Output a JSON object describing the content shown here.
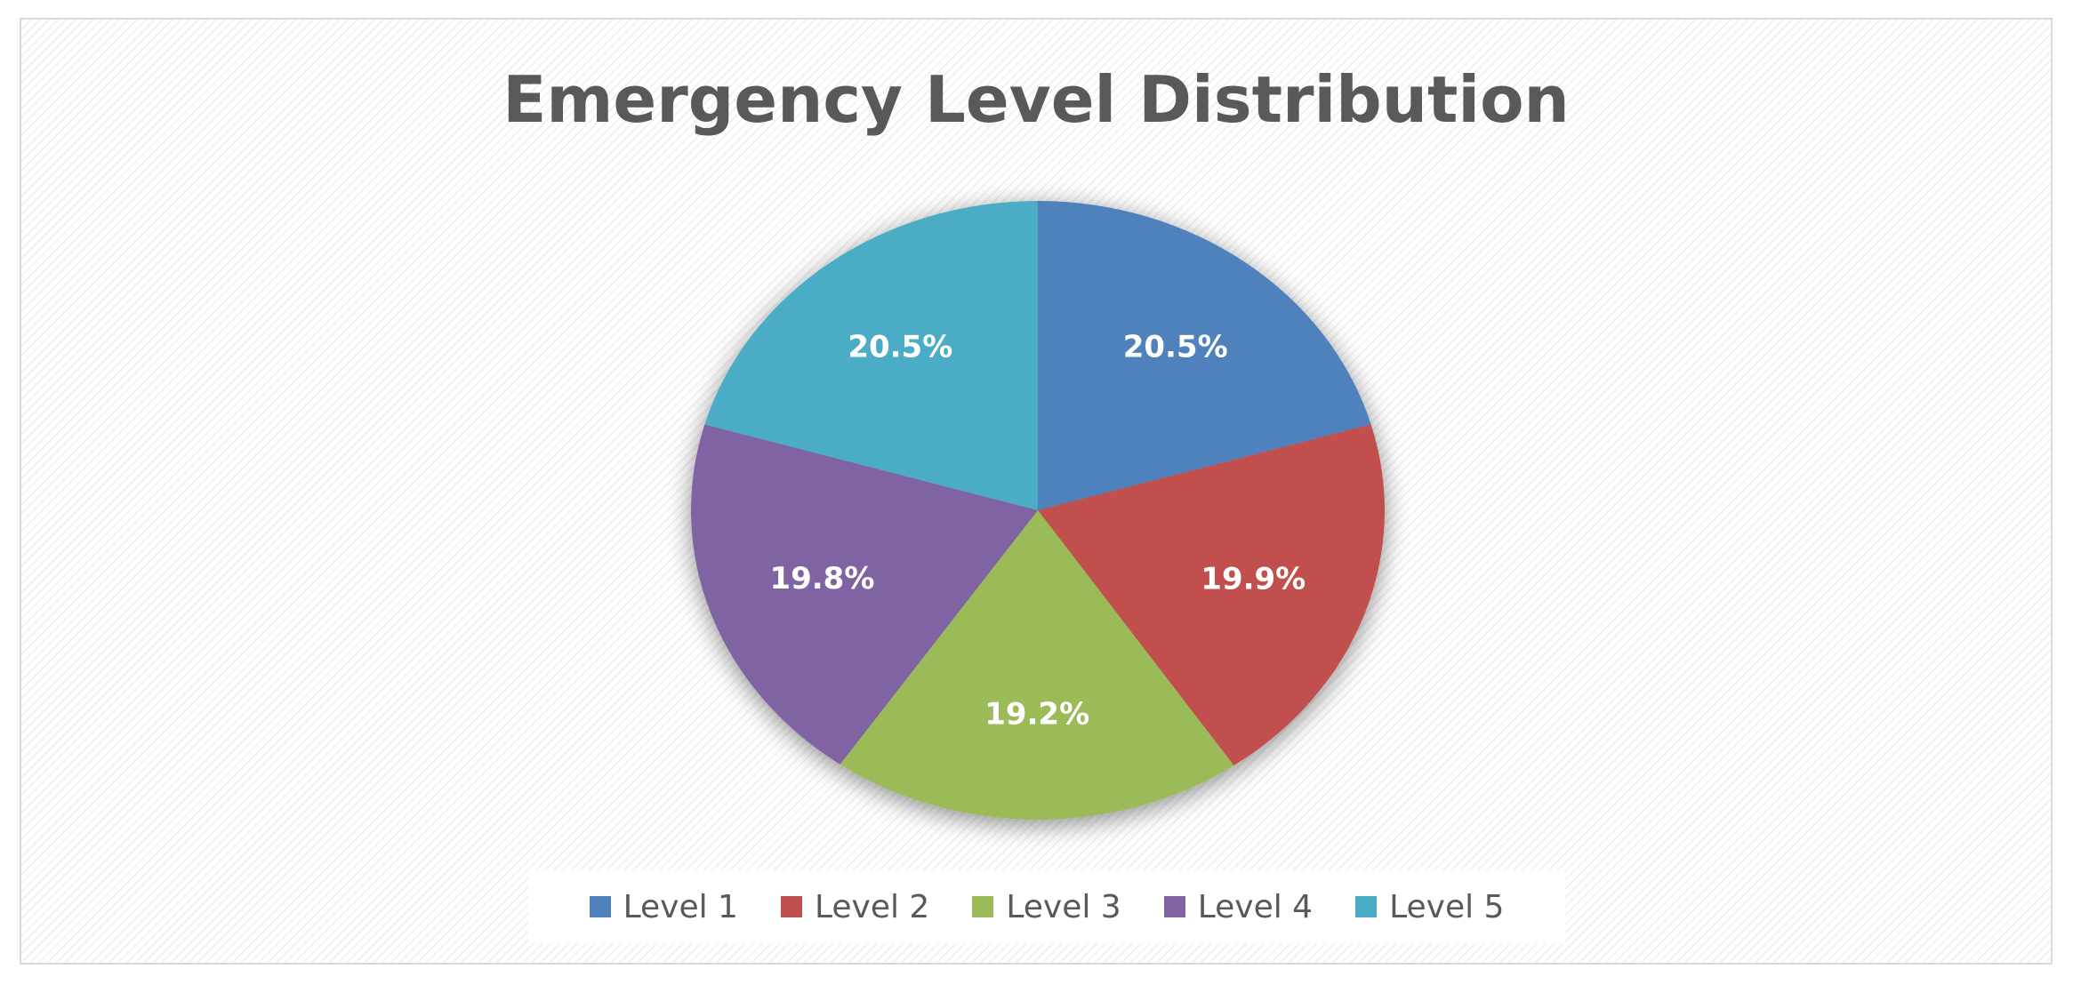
{
  "chart_data": {
    "type": "pie",
    "title": "Emergency Level Distribution",
    "categories": [
      "Level 1",
      "Level 2",
      "Level 3",
      "Level 4",
      "Level 5"
    ],
    "values": [
      20.5,
      19.9,
      19.2,
      19.8,
      20.5
    ],
    "labels": [
      "20.5%",
      "19.9%",
      "19.2%",
      "19.8%",
      "20.5%"
    ],
    "colors": [
      "#4f81bd",
      "#c0504d",
      "#9bbb59",
      "#8064a2",
      "#4bacc6"
    ],
    "start_angle": "12 o'clock, clockwise",
    "legend_position": "bottom"
  }
}
